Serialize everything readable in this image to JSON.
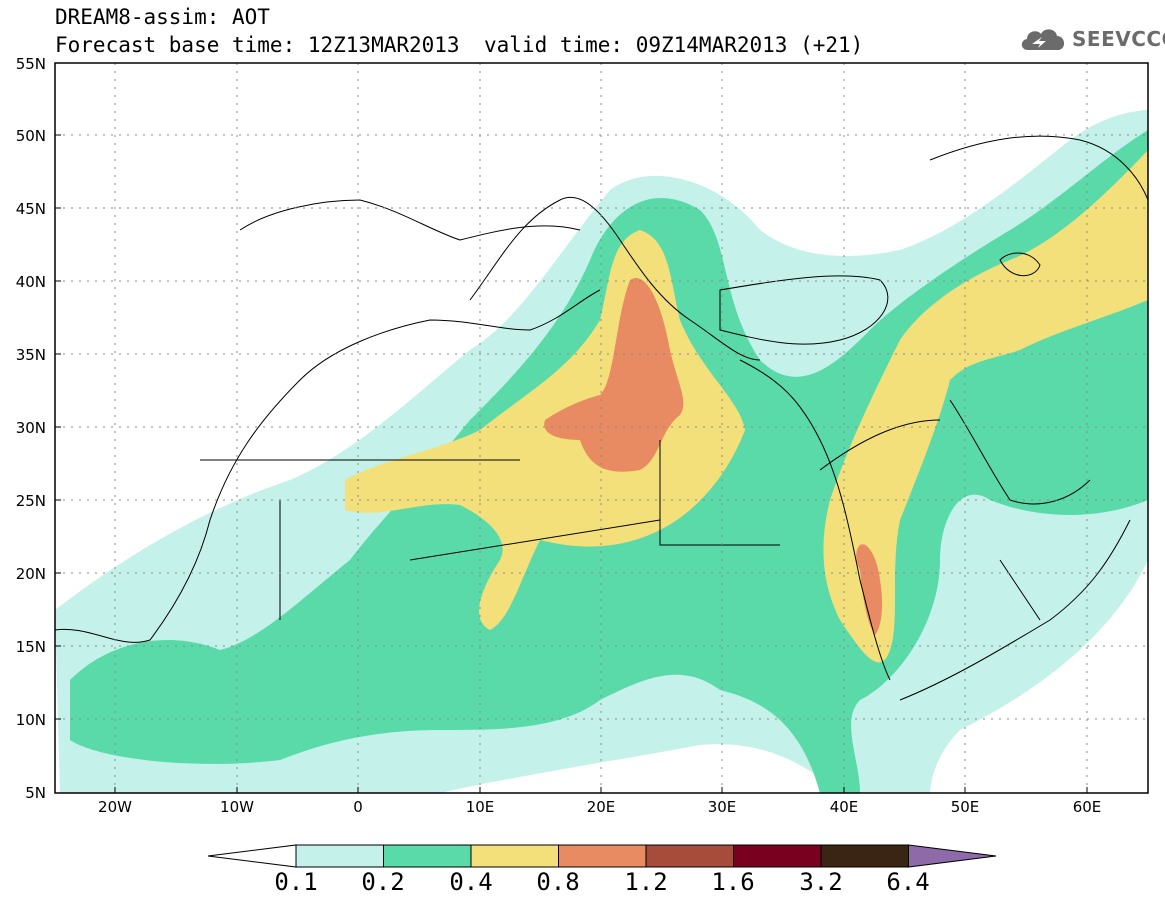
{
  "header": {
    "title_line1": "DREAM8-assim: AOT",
    "title_line2": "Forecast base time: 12Z13MAR2013",
    "valid_time": "valid time: 09Z14MAR2013 (+21)",
    "logo_text": "SEEVCCC"
  },
  "map": {
    "variable": "AOT",
    "lat_labels": [
      "55N",
      "50N",
      "45N",
      "40N",
      "35N",
      "30N",
      "25N",
      "20N",
      "15N",
      "10N",
      "5N"
    ],
    "lon_labels": [
      "20W",
      "10W",
      "0",
      "10E",
      "20E",
      "30E",
      "40E",
      "50E",
      "60E"
    ],
    "lat_range": [
      5,
      55
    ],
    "lon_range": [
      -25,
      65
    ]
  },
  "colorbar": {
    "labels": [
      "0.1",
      "0.2",
      "0.4",
      "0.8",
      "1.2",
      "1.6",
      "3.2",
      "6.4"
    ],
    "colors": [
      "#ffffff",
      "#c4f1ea",
      "#5ad9a9",
      "#f4e07a",
      "#e88a62",
      "#a74c3b",
      "#7a0020",
      "#3a2414",
      "#8e6aa8"
    ]
  }
}
